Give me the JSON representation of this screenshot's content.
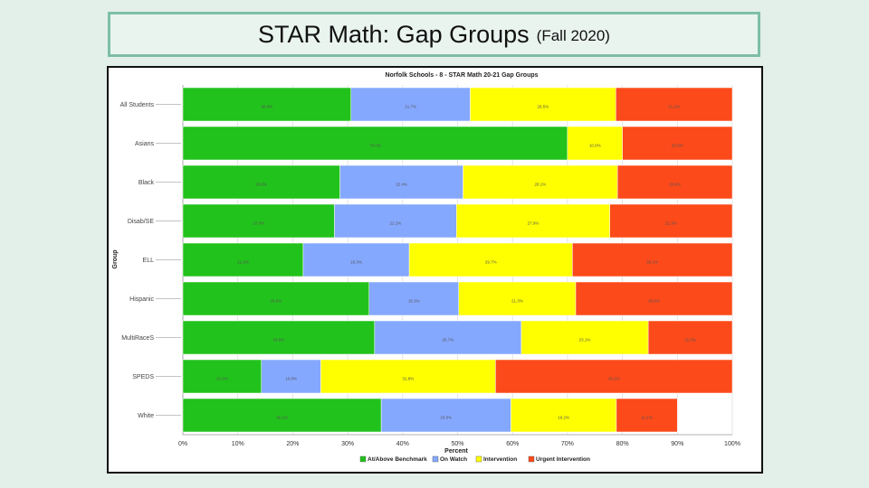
{
  "slide": {
    "title": "STAR Math: Gap Groups",
    "subtitle": "(Fall 2020)"
  },
  "chart_data": {
    "type": "bar",
    "orientation": "horizontal",
    "stacked": true,
    "title": "Norfolk Schools - 8 - STAR Math 20-21 Gap Groups",
    "xlabel": "Percent",
    "ylabel": "Group",
    "xlim": [
      0,
      100
    ],
    "x_ticks": [
      "0%",
      "10%",
      "20%",
      "30%",
      "40%",
      "50%",
      "60%",
      "70%",
      "80%",
      "90%",
      "100%"
    ],
    "grid": true,
    "legend_position": "bottom",
    "categories": [
      "All Students",
      "Asians",
      "Black",
      "Disab/SE",
      "ELL",
      "Hispanic",
      "MultiRaceS",
      "SPEDS",
      "White"
    ],
    "series": [
      {
        "name": "At/Above Benchmark",
        "color": "#22c21c",
        "values": [
          30.6,
          70.0,
          28.6,
          27.6,
          21.9,
          33.9,
          34.9,
          14.3,
          36.1
        ]
      },
      {
        "name": "On Watch",
        "color": "#85a8ff",
        "values": [
          21.7,
          0,
          22.4,
          22.2,
          19.3,
          16.3,
          26.7,
          10.8,
          23.6
        ]
      },
      {
        "name": "Intervention",
        "color": "#ffff00",
        "values": [
          26.5,
          10.0,
          28.1,
          27.9,
          29.7,
          21.3,
          23.1,
          31.8,
          19.2
        ]
      },
      {
        "name": "Urgent Intervention",
        "color": "#fc4a1a",
        "values": [
          21.2,
          20.0,
          20.9,
          22.3,
          29.1,
          28.5,
          15.3,
          43.1,
          11.1
        ]
      }
    ]
  }
}
